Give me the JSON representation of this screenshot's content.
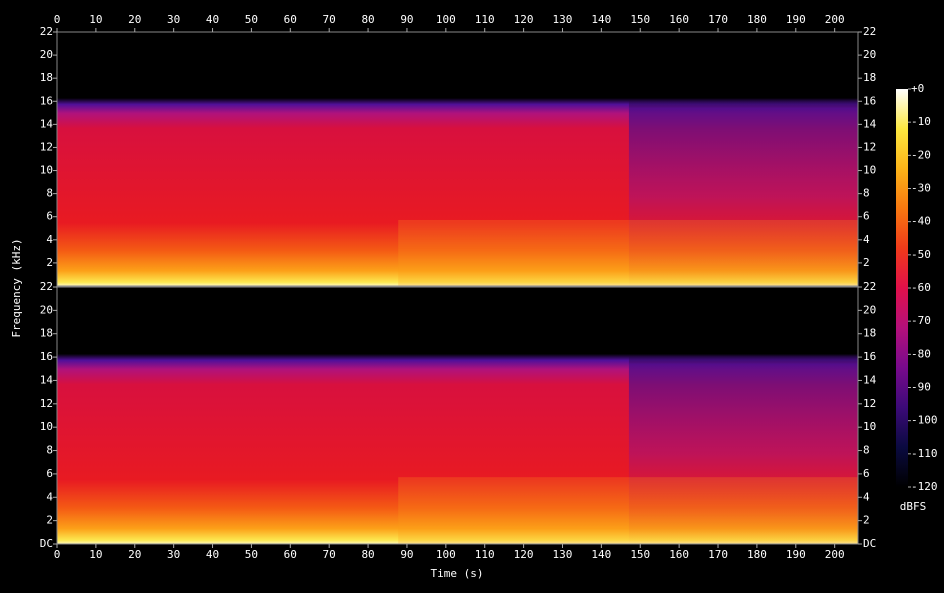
{
  "chart_data": {
    "type": "spectrogram",
    "x_label": "Time (s)",
    "y_label": "Frequency (kHz)",
    "xlim": [
      0,
      206
    ],
    "xticks": [
      0,
      10,
      20,
      30,
      40,
      50,
      60,
      70,
      80,
      90,
      100,
      110,
      120,
      130,
      140,
      150,
      160,
      170,
      180,
      190,
      200
    ],
    "channels": [
      {
        "ylim": [
          0,
          22
        ],
        "yticks": [
          2,
          4,
          6,
          8,
          10,
          12,
          14,
          16,
          18,
          20,
          22
        ]
      },
      {
        "ylim": [
          0,
          22
        ],
        "yticks": [
          {
            "value": 0,
            "label": "DC"
          },
          2,
          4,
          6,
          8,
          10,
          12,
          14,
          16,
          18,
          20,
          22
        ]
      }
    ],
    "colorbar": {
      "label": "dBFS",
      "clim": [
        -120,
        0
      ],
      "ticks": [
        {
          "value": 0,
          "label": "+0"
        },
        -10,
        -20,
        -30,
        -40,
        -50,
        -60,
        -70,
        -80,
        -90,
        -100,
        -110,
        -120
      ],
      "colors": [
        "#000000",
        "#0a0a40",
        "#3c0a78",
        "#780a8c",
        "#b4107a",
        "#e0104a",
        "#f03a1a",
        "#f87810",
        "#fcb418",
        "#fce840",
        "#ffffff"
      ]
    }
  }
}
